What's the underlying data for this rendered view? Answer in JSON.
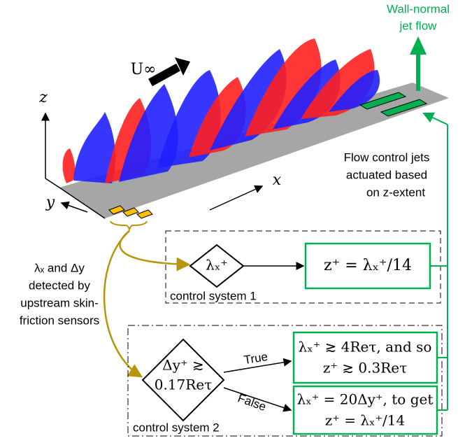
{
  "jet_label": [
    "Wall-normal",
    "jet flow"
  ],
  "freestream": "U∞",
  "axes": {
    "z": "z",
    "x": "x",
    "y": "y"
  },
  "jets_note": [
    "Flow control jets",
    "actuated based",
    "on z-extent"
  ],
  "sensors_note": [
    "λₓ and Δy",
    "detected by",
    "upstream skin-",
    "friction sensors"
  ],
  "system1": {
    "decision": "λₓ⁺",
    "output": "z⁺ = λₓ⁺/14",
    "label": "control system 1"
  },
  "system2": {
    "decision": [
      "Δy⁺ ≳",
      "0.17Reτ"
    ],
    "true": "True",
    "false": "False",
    "true_output": [
      "λₓ⁺ ≳ 4Reτ, and so",
      "z⁺ ≳ 0.3Reτ"
    ],
    "false_output": [
      "λₓ⁺ = 20Δy⁺, to get",
      "z⁺ = λₓ⁺/14"
    ],
    "label": "control system 2"
  }
}
